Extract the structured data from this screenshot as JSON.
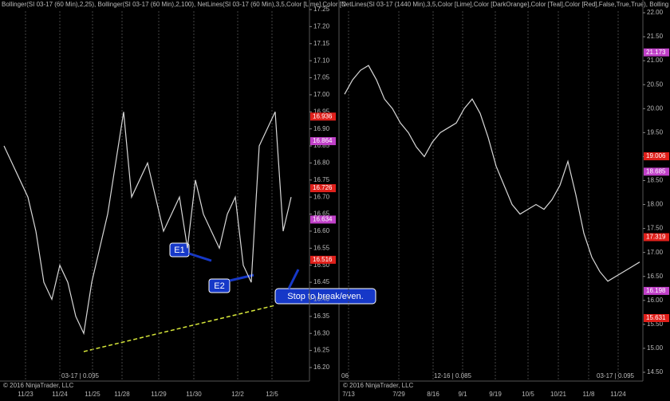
{
  "chart_data": [
    {
      "type": "line",
      "title": "Bollinger(SI 03-17 (60 Min),2,25), Bollinger(SI 03-17 (60 Min),2,100), NetLines(SI 03-17 (60 Min),3,5,Color [Lime],Color [D",
      "footer": [
        "© 2016 NinjaTrader, LLC",
        "03-17 | 0.095"
      ],
      "annotations": [
        "E1",
        "E2",
        "Stop to break/even."
      ],
      "color": "#d8d8d8",
      "values": [
        16.85,
        16.8,
        16.75,
        16.7,
        16.6,
        16.45,
        16.4,
        16.5,
        16.45,
        16.35,
        16.3,
        16.45,
        16.55,
        16.65,
        16.8,
        16.95,
        16.7,
        16.75,
        16.8,
        16.7,
        16.6,
        16.65,
        16.7,
        16.55,
        16.75,
        16.65,
        16.6,
        16.55,
        16.65,
        16.7,
        16.5,
        16.45,
        16.85,
        16.9,
        16.95,
        16.6,
        16.7
      ],
      "xticks": [
        {
          "value": 2.7,
          "label": "11/23"
        },
        {
          "value": 7,
          "label": "11/24"
        },
        {
          "value": 11.1,
          "label": "11/25"
        },
        {
          "value": 14.8,
          "label": "11/28"
        },
        {
          "value": 19.4,
          "label": "11/29"
        },
        {
          "value": 23.8,
          "label": "11/30"
        },
        {
          "value": 29.3,
          "label": "12/2"
        },
        {
          "value": 33.6,
          "label": "12/5"
        }
      ],
      "ylim": [
        16.2,
        17.25
      ],
      "yticks": [
        {
          "value": 16.2,
          "label": "16.20"
        },
        {
          "value": 16.25,
          "label": "16.25"
        },
        {
          "value": 16.3,
          "label": "16.30"
        },
        {
          "value": 16.35,
          "label": "16.35"
        },
        {
          "value": 16.4,
          "label": "16.40"
        },
        {
          "value": 16.45,
          "label": "16.45"
        },
        {
          "value": 16.5,
          "label": "16.50"
        },
        {
          "value": 16.55,
          "label": "16.55"
        },
        {
          "value": 16.6,
          "label": "16.60"
        },
        {
          "value": 16.65,
          "label": "16.65"
        },
        {
          "value": 16.7,
          "label": "16.70"
        },
        {
          "value": 16.75,
          "label": "16.75"
        },
        {
          "value": 16.8,
          "label": "16.80"
        },
        {
          "value": 16.85,
          "label": "16.85"
        },
        {
          "value": 16.9,
          "label": "16.90"
        },
        {
          "value": 16.95,
          "label": "16.95"
        },
        {
          "value": 17,
          "label": "17.00"
        },
        {
          "value": 17.05,
          "label": "17.05"
        },
        {
          "value": 17.1,
          "label": "17.10"
        },
        {
          "value": 17.15,
          "label": "17.15"
        },
        {
          "value": 17.2,
          "label": "17.20"
        },
        {
          "value": 17.25,
          "label": "17.25"
        }
      ],
      "levels": [
        {
          "value": 16.936,
          "color": "#e0201b"
        },
        {
          "value": 16.864,
          "color": "#c040c8"
        },
        {
          "value": 16.726,
          "color": "#e0201b"
        },
        {
          "value": 16.634,
          "color": "#c040c8"
        },
        {
          "value": 16.516,
          "color": "#e0201b"
        }
      ]
    },
    {
      "type": "line",
      "title": "NetLines(SI 03-17 (1440 Min),3,5,Color [Lime],Color [DarkOrange],Color [Teal],Color [Red],False,True,True), Bolling",
      "footer": [
        "© 2016 NinjaTrader, LLC",
        "12-16 | 0.085",
        "03-17 | 0.095",
        "06"
      ],
      "color": "#d8d8d8",
      "values": [
        20.3,
        20.6,
        20.8,
        20.9,
        20.6,
        20.2,
        20.0,
        19.7,
        19.5,
        19.2,
        19.0,
        19.3,
        19.5,
        19.6,
        19.7,
        20.0,
        20.2,
        19.9,
        19.4,
        18.8,
        18.4,
        18.0,
        17.8,
        17.9,
        18.0,
        17.9,
        18.1,
        18.4,
        18.9,
        18.2,
        17.4,
        16.9,
        16.6,
        16.4,
        16.5,
        16.6,
        16.7,
        16.8
      ],
      "xticks": [
        {
          "value": 0.5,
          "label": "7/13"
        },
        {
          "value": 6.8,
          "label": "7/29"
        },
        {
          "value": 11.1,
          "label": "8/16"
        },
        {
          "value": 14.8,
          "label": "9/1"
        },
        {
          "value": 18.9,
          "label": "9/19"
        },
        {
          "value": 23,
          "label": "10/5"
        },
        {
          "value": 26.8,
          "label": "10/21"
        },
        {
          "value": 30.6,
          "label": "11/8"
        },
        {
          "value": 34.3,
          "label": "11/24"
        }
      ],
      "ylim": [
        14.5,
        22.0
      ],
      "yticks": [
        {
          "value": 14.5,
          "label": "14.50"
        },
        {
          "value": 15,
          "label": "15.00"
        },
        {
          "value": 15.5,
          "label": "15.50"
        },
        {
          "value": 16,
          "label": "16.00"
        },
        {
          "value": 16.5,
          "label": "16.50"
        },
        {
          "value": 17,
          "label": "17.00"
        },
        {
          "value": 17.5,
          "label": "17.50"
        },
        {
          "value": 18,
          "label": "18.00"
        },
        {
          "value": 18.5,
          "label": "18.50"
        },
        {
          "value": 19,
          "label": "19.00"
        },
        {
          "value": 19.5,
          "label": "19.50"
        },
        {
          "value": 20,
          "label": "20.00"
        },
        {
          "value": 20.5,
          "label": "20.50"
        },
        {
          "value": 21,
          "label": "21.00"
        },
        {
          "value": 21.5,
          "label": "21.50"
        },
        {
          "value": 22,
          "label": "22.00"
        }
      ],
      "levels": [
        {
          "value": 21.173,
          "color": "#c040c8"
        },
        {
          "value": 19.006,
          "color": "#e0201b"
        },
        {
          "value": 18.685,
          "color": "#c040c8"
        },
        {
          "value": 17.319,
          "color": "#e0201b"
        },
        {
          "value": 16.198,
          "color": "#c040c8"
        },
        {
          "value": 15.631,
          "color": "#e0201b"
        }
      ]
    }
  ]
}
